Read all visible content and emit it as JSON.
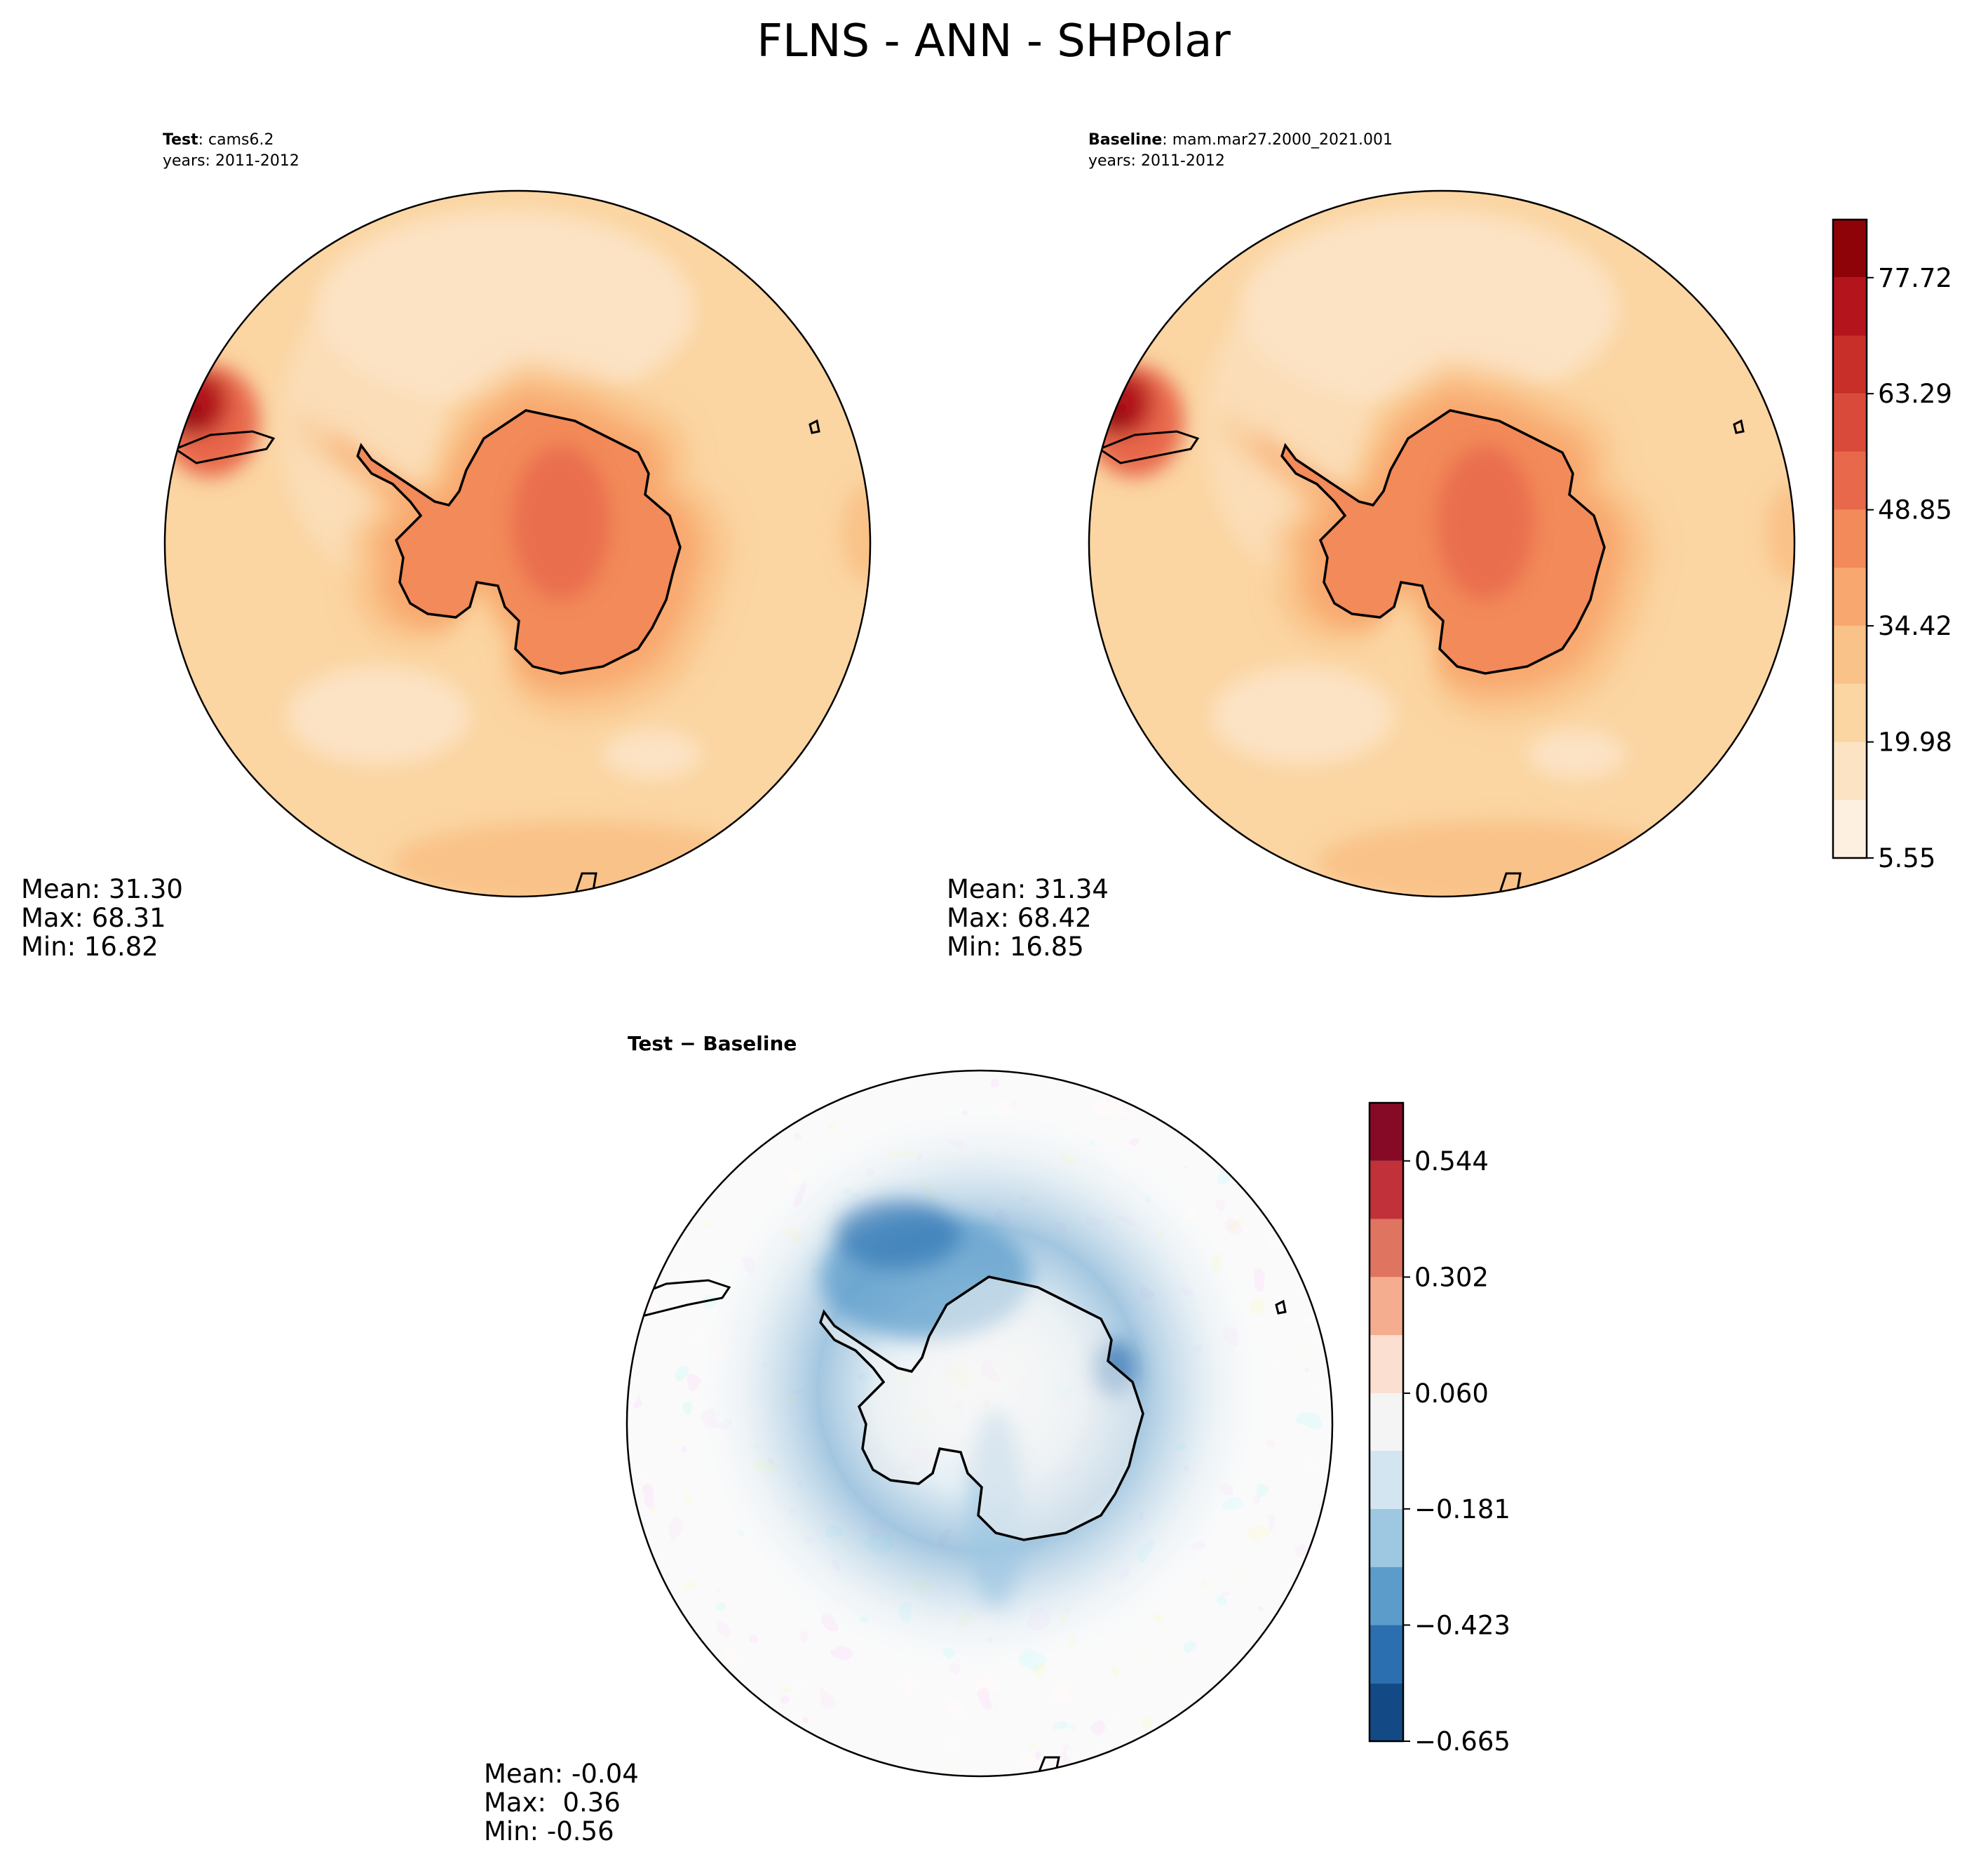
{
  "figure": {
    "title": "FLNS - ANN - SHPolar"
  },
  "panels": {
    "test": {
      "label_bold": "Test",
      "label_rest": ": cams6.2",
      "years": "years: 2011-2012",
      "stats": {
        "mean": "Mean: 31.30",
        "max": "Max: 68.31",
        "min": "Min: 16.82"
      }
    },
    "baseline": {
      "label_bold": "Baseline",
      "label_rest": ": mam.mar27.2000_2021.001",
      "years": "years: 2011-2012",
      "stats": {
        "mean": "Mean: 31.34",
        "max": "Max: 68.42",
        "min": "Min: 16.85"
      }
    },
    "diff": {
      "label": "Test − Baseline",
      "stats": {
        "mean": "Mean: -0.04",
        "max": "Max:  0.36",
        "min": "Min: -0.56"
      }
    }
  },
  "colorbars": {
    "main": {
      "tick_labels": [
        "5.55",
        "19.98",
        "34.42",
        "48.85",
        "63.29",
        "77.72"
      ],
      "levels": [
        5.55,
        12.77,
        19.98,
        27.2,
        34.42,
        41.63,
        48.85,
        56.07,
        63.29,
        70.5,
        77.72,
        84.94
      ],
      "colors": [
        "#fdf0e1",
        "#fce3c4",
        "#fbd5a2",
        "#f9c288",
        "#f8a86e",
        "#f28a59",
        "#e8684b",
        "#d94a3a",
        "#c82f29",
        "#b4141c",
        "#8e0308"
      ]
    },
    "diff": {
      "tick_labels": [
        "−0.665",
        "−0.423",
        "−0.181",
        "0.060",
        "0.302",
        "0.544"
      ],
      "levels": [
        -0.665,
        -0.544,
        -0.423,
        -0.302,
        -0.181,
        -0.06,
        0.06,
        0.181,
        0.302,
        0.423,
        0.544,
        0.665
      ],
      "colors": [
        "#134a85",
        "#2c6fb0",
        "#5c9ccb",
        "#9ec8e2",
        "#d2e5f0",
        "#f4f4f4",
        "#fbdfd0",
        "#f4ad8e",
        "#df7460",
        "#c03139",
        "#860a25"
      ]
    }
  },
  "chart_data": [
    {
      "type": "heatmap",
      "title": "Test: cams6.2",
      "subtitle": "years: 2011-2012",
      "projection": "south-polar-stereographic",
      "variable": "FLNS",
      "season": "ANN",
      "mean": 31.3,
      "max": 68.31,
      "min": 16.82,
      "levels": [
        5.55,
        12.77,
        19.98,
        27.2,
        34.42,
        41.63,
        48.85,
        56.07,
        63.29,
        70.5,
        77.72,
        84.94
      ]
    },
    {
      "type": "heatmap",
      "title": "Baseline: mam.mar27.2000_2021.001",
      "subtitle": "years: 2011-2012",
      "projection": "south-polar-stereographic",
      "variable": "FLNS",
      "season": "ANN",
      "mean": 31.34,
      "max": 68.42,
      "min": 16.85,
      "levels": [
        5.55,
        12.77,
        19.98,
        27.2,
        34.42,
        41.63,
        48.85,
        56.07,
        63.29,
        70.5,
        77.72,
        84.94
      ]
    },
    {
      "type": "heatmap",
      "title": "Test − Baseline",
      "projection": "south-polar-stereographic",
      "variable": "FLNS",
      "season": "ANN",
      "mean": -0.04,
      "max": 0.36,
      "min": -0.56,
      "levels": [
        -0.665,
        -0.544,
        -0.423,
        -0.302,
        -0.181,
        -0.06,
        0.06,
        0.181,
        0.302,
        0.423,
        0.544,
        0.665
      ]
    }
  ]
}
